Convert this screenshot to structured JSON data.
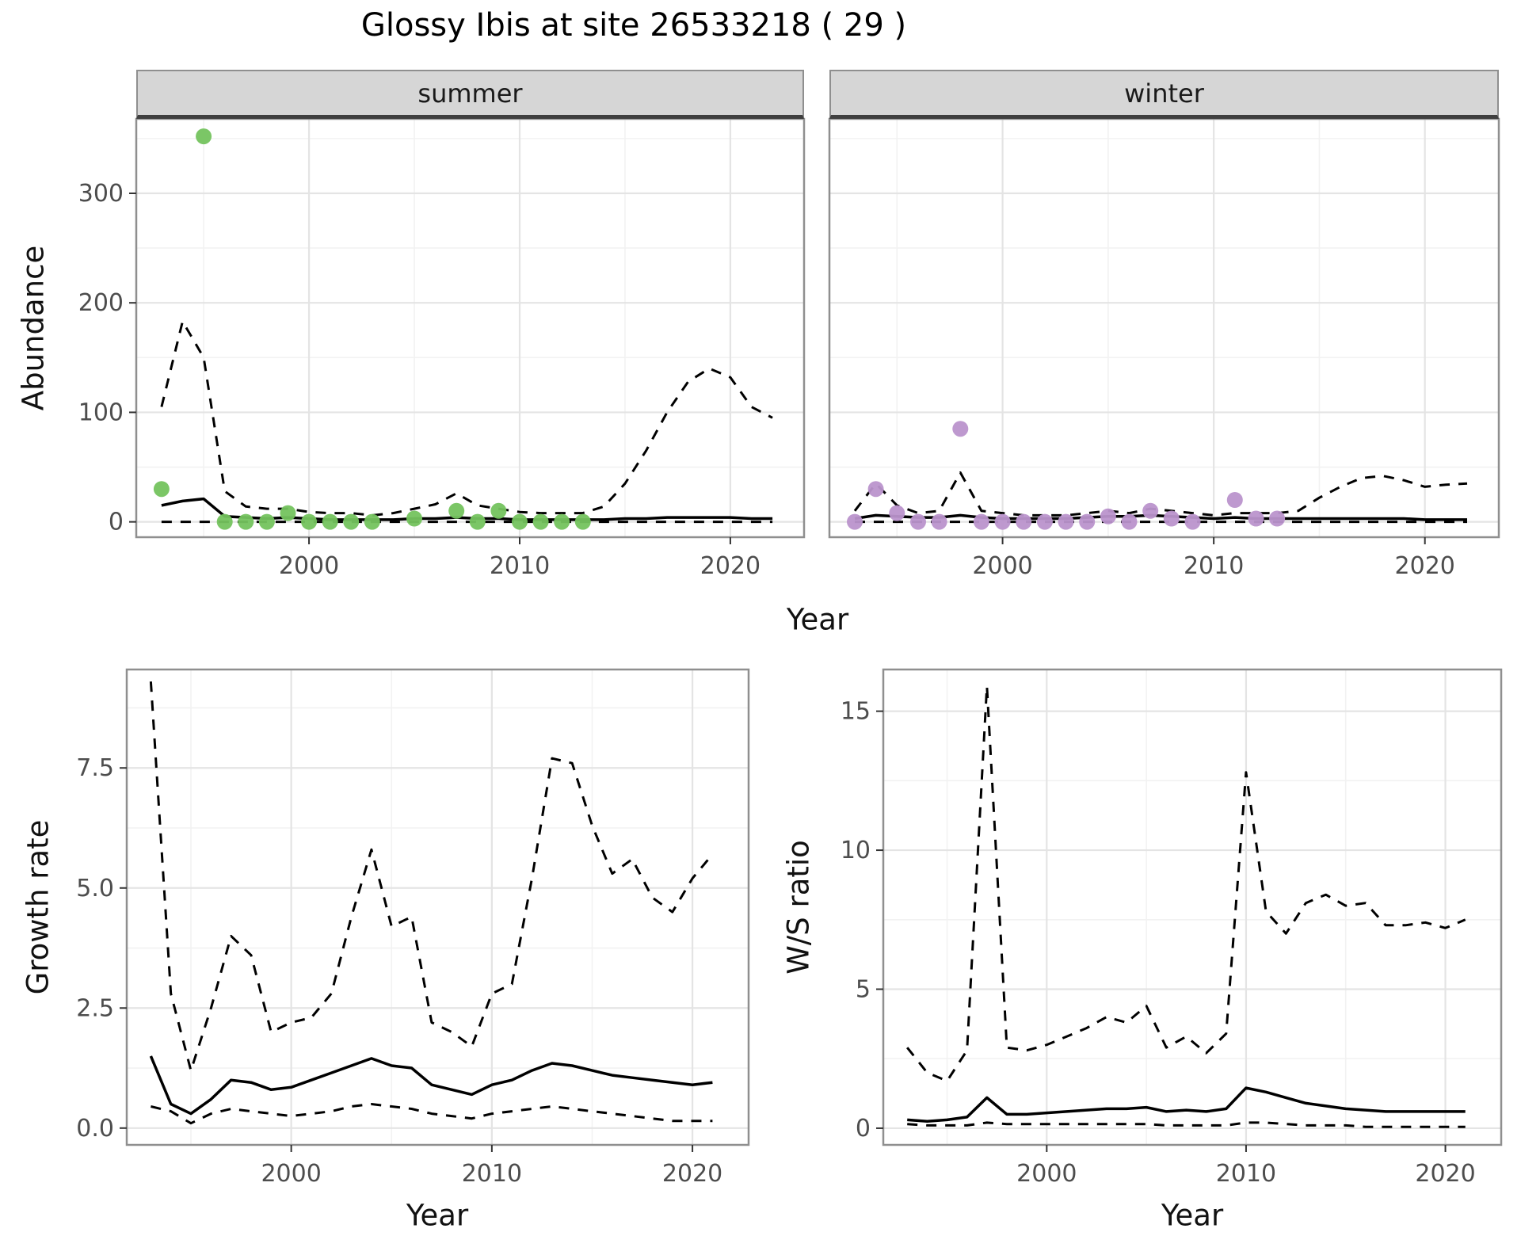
{
  "title": "Glossy Ibis at site 26533218 ( 29 )",
  "top_row": {
    "ylabel": "Abundance",
    "xlabel": "Year"
  },
  "colors": {
    "summer_point": "#74c35e",
    "winter_point": "#bb93cc",
    "line": "#000000",
    "strip_bg": "#d6d6d6",
    "strip_border": "#8f8f8f",
    "panel_border": "#8f8f8f",
    "grid_major": "#e4e4e4",
    "grid_minor": "#f2f2f2",
    "tick_label": "#4d4d4d",
    "axis_label": "#111111"
  },
  "chart_data": [
    {
      "id": "abundance-summer",
      "type": "scatter",
      "facet_label": "summer",
      "xlim": [
        1991.8,
        2023.5
      ],
      "ylim": [
        -14,
        368
      ],
      "x_ticks": [
        2000,
        2010,
        2020
      ],
      "x_tick_labels": [
        "2000",
        "2010",
        "2020"
      ],
      "y_ticks": [
        0,
        100,
        200,
        300
      ],
      "y_tick_labels": [
        "0",
        "100",
        "200",
        "300"
      ],
      "x_minor": [
        1995,
        2005,
        2015
      ],
      "y_minor": [
        50,
        150,
        250,
        350
      ],
      "years": [
        1993,
        1994,
        1995,
        1996,
        1997,
        1998,
        1999,
        2000,
        2001,
        2002,
        2003,
        2004,
        2005,
        2006,
        2007,
        2008,
        2009,
        2010,
        2011,
        2012,
        2013,
        2014,
        2015,
        2016,
        2017,
        2018,
        2019,
        2020,
        2021,
        2022
      ],
      "series": [
        {
          "name": "fit",
          "style": "solid",
          "values": [
            15,
            19,
            21,
            5,
            4,
            3,
            4,
            3,
            2,
            2,
            2,
            2,
            3,
            3,
            4,
            3,
            3,
            2,
            2,
            2,
            2,
            2,
            3,
            3,
            4,
            4,
            4,
            4,
            3,
            3
          ]
        },
        {
          "name": "upper-ci",
          "style": "dashed",
          "values": [
            105,
            183,
            150,
            28,
            14,
            12,
            12,
            9,
            8,
            8,
            6,
            8,
            12,
            16,
            26,
            15,
            12,
            9,
            8,
            8,
            8,
            14,
            35,
            65,
            100,
            128,
            140,
            132,
            105,
            95
          ]
        },
        {
          "name": "lower-ci",
          "style": "dashed",
          "values": [
            0,
            0,
            0,
            0,
            0,
            0,
            0,
            0,
            0,
            0,
            0,
            0,
            0,
            0,
            0,
            0,
            0,
            0,
            0,
            0,
            0,
            0,
            0,
            0,
            0,
            0,
            0,
            0,
            0,
            0
          ]
        }
      ],
      "points": {
        "color_key": "summer_point",
        "data": [
          [
            1993,
            30
          ],
          [
            1995,
            352
          ],
          [
            1996,
            0
          ],
          [
            1997,
            0
          ],
          [
            1998,
            0
          ],
          [
            1999,
            8
          ],
          [
            2000,
            0
          ],
          [
            2001,
            0
          ],
          [
            2002,
            0
          ],
          [
            2003,
            0
          ],
          [
            2005,
            3
          ],
          [
            2007,
            10
          ],
          [
            2008,
            0
          ],
          [
            2009,
            10
          ],
          [
            2010,
            0
          ],
          [
            2011,
            0
          ],
          [
            2012,
            0
          ],
          [
            2013,
            0
          ]
        ]
      }
    },
    {
      "id": "abundance-winter",
      "type": "scatter",
      "facet_label": "winter",
      "xlim": [
        1991.8,
        2023.5
      ],
      "ylim": [
        -14,
        368
      ],
      "x_ticks": [
        2000,
        2010,
        2020
      ],
      "x_tick_labels": [
        "2000",
        "2010",
        "2020"
      ],
      "y_ticks": [
        0,
        100,
        200,
        300
      ],
      "y_tick_labels": [
        "0",
        "100",
        "200",
        "300"
      ],
      "x_minor": [
        1995,
        2005,
        2015
      ],
      "y_minor": [
        50,
        150,
        250,
        350
      ],
      "years": [
        1993,
        1994,
        1995,
        1996,
        1997,
        1998,
        1999,
        2000,
        2001,
        2002,
        2003,
        2004,
        2005,
        2006,
        2007,
        2008,
        2009,
        2010,
        2011,
        2012,
        2013,
        2014,
        2015,
        2016,
        2017,
        2018,
        2019,
        2020,
        2021,
        2022
      ],
      "series": [
        {
          "name": "fit",
          "style": "solid",
          "values": [
            3,
            6,
            5,
            4,
            4,
            6,
            4,
            3,
            3,
            3,
            3,
            4,
            5,
            5,
            6,
            5,
            4,
            3,
            4,
            3,
            3,
            3,
            3,
            3,
            3,
            3,
            3,
            2,
            2,
            2
          ]
        },
        {
          "name": "upper-ci",
          "style": "dashed",
          "values": [
            10,
            35,
            15,
            8,
            10,
            45,
            10,
            8,
            6,
            6,
            6,
            8,
            10,
            8,
            12,
            10,
            8,
            6,
            8,
            8,
            8,
            10,
            22,
            32,
            40,
            42,
            38,
            32,
            34,
            35
          ]
        },
        {
          "name": "lower-ci",
          "style": "dashed",
          "values": [
            0,
            0,
            0,
            0,
            0,
            0,
            0,
            0,
            0,
            0,
            0,
            0,
            0,
            0,
            0,
            0,
            0,
            0,
            0,
            0,
            0,
            0,
            0,
            0,
            0,
            0,
            0,
            0,
            0,
            0
          ]
        }
      ],
      "points": {
        "color_key": "winter_point",
        "data": [
          [
            1993,
            0
          ],
          [
            1994,
            30
          ],
          [
            1995,
            8
          ],
          [
            1996,
            0
          ],
          [
            1997,
            0
          ],
          [
            1998,
            85
          ],
          [
            1999,
            0
          ],
          [
            2000,
            0
          ],
          [
            2001,
            0
          ],
          [
            2002,
            0
          ],
          [
            2003,
            0
          ],
          [
            2004,
            0
          ],
          [
            2005,
            5
          ],
          [
            2006,
            0
          ],
          [
            2007,
            10
          ],
          [
            2008,
            3
          ],
          [
            2009,
            0
          ],
          [
            2011,
            20
          ],
          [
            2012,
            3
          ],
          [
            2013,
            3
          ]
        ]
      }
    },
    {
      "id": "growth-rate",
      "type": "line",
      "ylabel": "Growth rate",
      "xlabel": "Year",
      "xlim": [
        1991.8,
        2022.8
      ],
      "ylim": [
        -0.35,
        9.55
      ],
      "x_ticks": [
        2000,
        2010,
        2020
      ],
      "x_tick_labels": [
        "2000",
        "2010",
        "2020"
      ],
      "y_ticks": [
        0,
        2.5,
        5,
        7.5
      ],
      "y_tick_labels": [
        "0.0",
        "2.5",
        "5.0",
        "7.5"
      ],
      "x_minor": [
        1995,
        2005,
        2015
      ],
      "y_minor": [
        1.25,
        3.75,
        6.25,
        8.75
      ],
      "years": [
        1993,
        1994,
        1995,
        1996,
        1997,
        1998,
        1999,
        2000,
        2001,
        2002,
        2003,
        2004,
        2005,
        2006,
        2007,
        2008,
        2009,
        2010,
        2011,
        2012,
        2013,
        2014,
        2015,
        2016,
        2017,
        2018,
        2019,
        2020,
        2021
      ],
      "series": [
        {
          "name": "fit",
          "style": "solid",
          "values": [
            1.5,
            0.5,
            0.3,
            0.6,
            1.0,
            0.95,
            0.8,
            0.85,
            1.0,
            1.15,
            1.3,
            1.45,
            1.3,
            1.25,
            0.9,
            0.8,
            0.7,
            0.9,
            1.0,
            1.2,
            1.35,
            1.3,
            1.2,
            1.1,
            1.05,
            1.0,
            0.95,
            0.9,
            0.95
          ]
        },
        {
          "name": "upper-ci",
          "style": "dashed",
          "values": [
            9.3,
            2.8,
            1.2,
            2.5,
            4.0,
            3.6,
            2.0,
            2.2,
            2.3,
            2.8,
            4.4,
            5.8,
            4.2,
            4.4,
            2.2,
            2.0,
            1.7,
            2.8,
            3.0,
            5.2,
            7.7,
            7.6,
            6.3,
            5.3,
            5.6,
            4.8,
            4.5,
            5.2,
            5.7
          ]
        },
        {
          "name": "lower-ci",
          "style": "dashed",
          "values": [
            0.45,
            0.35,
            0.1,
            0.3,
            0.4,
            0.35,
            0.3,
            0.25,
            0.3,
            0.35,
            0.45,
            0.5,
            0.45,
            0.4,
            0.3,
            0.25,
            0.2,
            0.3,
            0.35,
            0.4,
            0.45,
            0.4,
            0.35,
            0.3,
            0.25,
            0.2,
            0.15,
            0.15,
            0.15
          ]
        }
      ]
    },
    {
      "id": "ws-ratio",
      "type": "line",
      "ylabel": "W/S ratio",
      "xlabel": "Year",
      "xlim": [
        1991.8,
        2022.8
      ],
      "ylim": [
        -0.6,
        16.5
      ],
      "x_ticks": [
        2000,
        2010,
        2020
      ],
      "x_tick_labels": [
        "2000",
        "2010",
        "2020"
      ],
      "y_ticks": [
        0,
        5,
        10,
        15
      ],
      "y_tick_labels": [
        "0",
        "5",
        "10",
        "15"
      ],
      "x_minor": [
        1995,
        2005,
        2015
      ],
      "y_minor": [
        2.5,
        7.5,
        12.5
      ],
      "years": [
        1993,
        1994,
        1995,
        1996,
        1997,
        1998,
        1999,
        2000,
        2001,
        2002,
        2003,
        2004,
        2005,
        2006,
        2007,
        2008,
        2009,
        2010,
        2011,
        2012,
        2013,
        2014,
        2015,
        2016,
        2017,
        2018,
        2019,
        2020,
        2021
      ],
      "series": [
        {
          "name": "fit",
          "style": "solid",
          "values": [
            0.3,
            0.25,
            0.3,
            0.4,
            1.1,
            0.5,
            0.5,
            0.55,
            0.6,
            0.65,
            0.7,
            0.7,
            0.75,
            0.6,
            0.65,
            0.6,
            0.7,
            1.45,
            1.3,
            1.1,
            0.9,
            0.8,
            0.7,
            0.65,
            0.6,
            0.6,
            0.6,
            0.6,
            0.6
          ]
        },
        {
          "name": "upper-ci",
          "style": "dashed",
          "values": [
            2.9,
            2.0,
            1.7,
            2.8,
            15.9,
            2.9,
            2.8,
            3.0,
            3.3,
            3.6,
            4.0,
            3.8,
            4.4,
            2.9,
            3.3,
            2.7,
            3.4,
            12.8,
            7.8,
            7.0,
            8.1,
            8.4,
            8.0,
            8.1,
            7.3,
            7.3,
            7.4,
            7.2,
            7.5
          ]
        },
        {
          "name": "lower-ci",
          "style": "dashed",
          "values": [
            0.15,
            0.1,
            0.1,
            0.1,
            0.2,
            0.15,
            0.15,
            0.15,
            0.15,
            0.15,
            0.15,
            0.15,
            0.15,
            0.1,
            0.1,
            0.1,
            0.1,
            0.2,
            0.2,
            0.15,
            0.1,
            0.1,
            0.1,
            0.05,
            0.05,
            0.05,
            0.05,
            0.05,
            0.05
          ]
        }
      ]
    }
  ]
}
